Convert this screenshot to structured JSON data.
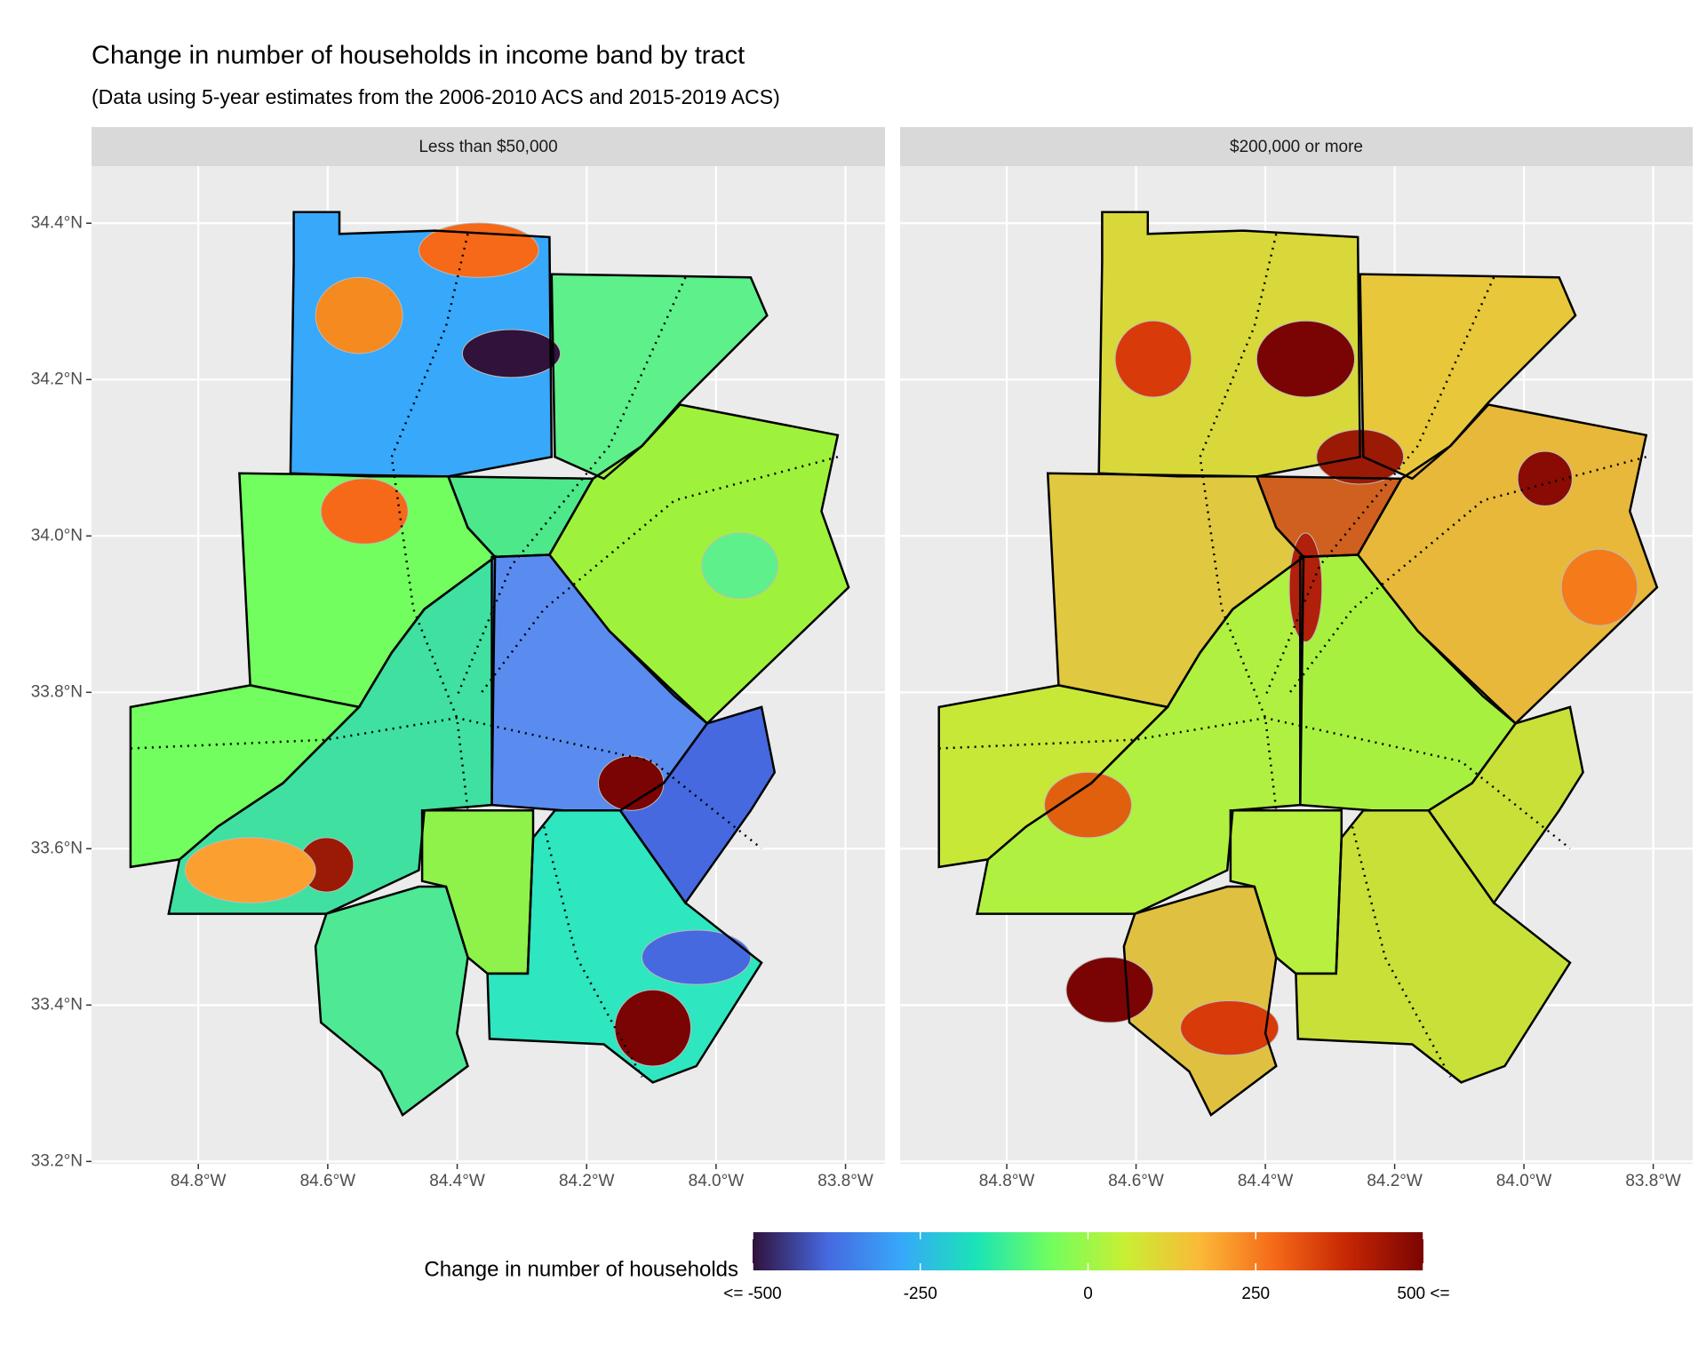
{
  "map": {
    "title": "Change in number of households in income band by tract",
    "subtitle": "(Data using 5-year estimates from the 2006-2010 ACS and 2015-2019 ACS)",
    "panels": [
      {
        "label": "Less than $50,000"
      },
      {
        "label": "$200,000 or more"
      }
    ],
    "xlim": [
      -84.965,
      -83.739
    ],
    "ylim": [
      33.197,
      34.473
    ],
    "xticks": [
      {
        "value": -84.8,
        "label": "84.8°W"
      },
      {
        "value": -84.6,
        "label": "84.6°W"
      },
      {
        "value": -84.4,
        "label": "84.4°W"
      },
      {
        "value": -84.2,
        "label": "84.2°W"
      },
      {
        "value": -84.0,
        "label": "84.0°W"
      },
      {
        "value": -83.8,
        "label": "83.8°W"
      }
    ],
    "yticks": [
      {
        "value": 33.2,
        "label": "33.2°N"
      },
      {
        "value": 33.4,
        "label": "33.4°N"
      },
      {
        "value": 33.6,
        "label": "33.6°N"
      },
      {
        "value": 33.8,
        "label": "33.8°N"
      },
      {
        "value": 34.0,
        "label": "34.0°N"
      },
      {
        "value": 34.2,
        "label": "34.2°N"
      },
      {
        "value": 34.4,
        "label": "34.4°N"
      }
    ],
    "legend": {
      "title": "Change in number of households",
      "range": [
        -500,
        500
      ],
      "colors": [
        "#30123b",
        "#4669e0",
        "#37a8fa",
        "#1ae4b6",
        "#72fe5e",
        "#c8ef34",
        "#fbb938",
        "#f56918",
        "#c42503",
        "#7a0403"
      ],
      "ticks": [
        {
          "value": -500,
          "label": "<= -500"
        },
        {
          "value": -250,
          "label": "-250"
        },
        0,
        250,
        {
          "value": 500,
          "label": "500 <="
        }
      ]
    }
  }
}
